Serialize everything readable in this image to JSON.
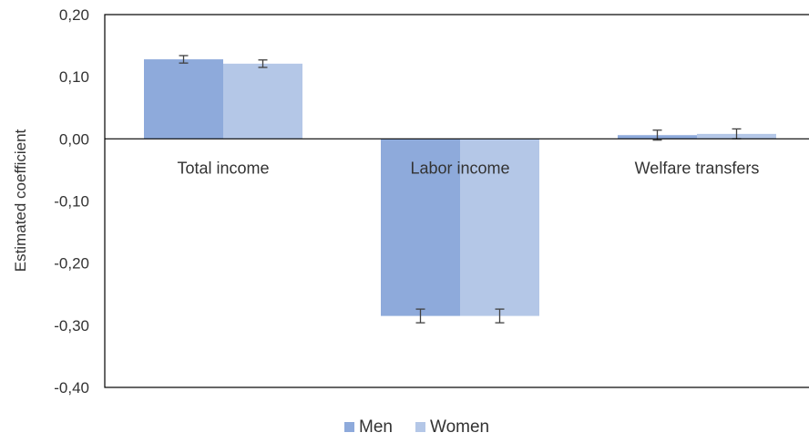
{
  "chart_data": {
    "type": "bar",
    "title": "",
    "xlabel": "",
    "ylabel": "Estimated coefficient",
    "categories": [
      "Total income",
      "Labor income",
      "Welfare transfers"
    ],
    "series": [
      {
        "name": "Men",
        "color": "#8eaadb",
        "values": [
          0.128,
          -0.285,
          0.006
        ],
        "error": [
          0.006,
          0.011,
          0.008
        ]
      },
      {
        "name": "Women",
        "color": "#b4c7e7",
        "values": [
          0.121,
          -0.285,
          0.008
        ],
        "error": [
          0.006,
          0.011,
          0.008
        ]
      }
    ],
    "ylim": [
      -0.4,
      0.2
    ],
    "yticks": [
      0.2,
      0.1,
      0.0,
      -0.1,
      -0.2,
      -0.3,
      -0.4
    ],
    "ytick_labels": [
      "0,20",
      "0,10",
      "0,00",
      "-0,10",
      "-0,20",
      "-0,30",
      "-0,40"
    ],
    "grid": false,
    "legend_position": "bottom-center",
    "frame_color": "#000000",
    "error_color": "#404040"
  }
}
